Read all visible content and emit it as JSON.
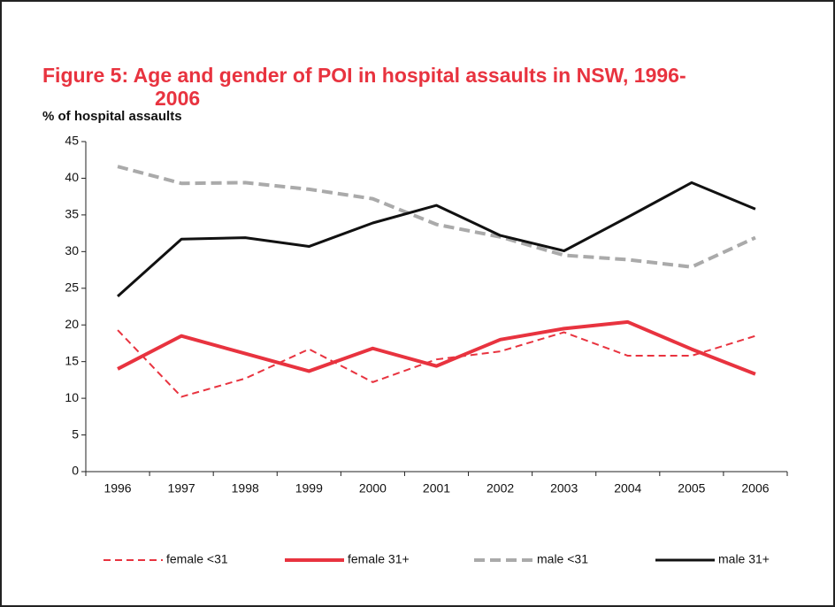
{
  "chart_data": {
    "type": "line",
    "title": "Figure 5: Age and gender of POI in hospital assaults in NSW, 1996-2006",
    "y_label": "% of hospital assaults",
    "categories": [
      "1996",
      "1997",
      "1998",
      "1999",
      "2000",
      "2001",
      "2002",
      "2003",
      "2004",
      "2005",
      "2006"
    ],
    "series": [
      {
        "name": "female <31",
        "color": "#e8333f",
        "style": "dashed",
        "width": 2,
        "values": [
          19.3,
          10.2,
          12.7,
          16.7,
          12.2,
          15.3,
          16.4,
          19.0,
          15.8,
          15.8,
          18.5
        ]
      },
      {
        "name": "female 31+",
        "color": "#e8333f",
        "style": "solid",
        "width": 4,
        "values": [
          14.0,
          18.5,
          16.1,
          13.7,
          16.8,
          14.4,
          18.0,
          19.5,
          20.4,
          16.7,
          13.3
        ]
      },
      {
        "name": "male <31",
        "color": "#aaaaaa",
        "style": "dashed",
        "width": 4,
        "values": [
          41.6,
          39.3,
          39.4,
          38.5,
          37.2,
          33.7,
          32.0,
          29.5,
          28.9,
          27.9,
          31.9
        ]
      },
      {
        "name": "male 31+",
        "color": "#111111",
        "style": "solid",
        "width": 3,
        "values": [
          23.9,
          31.7,
          31.9,
          30.7,
          33.9,
          36.3,
          32.2,
          30.1,
          34.7,
          39.4,
          35.8
        ]
      }
    ],
    "ylim": [
      0,
      45
    ],
    "yticks": [
      0,
      5,
      10,
      15,
      20,
      25,
      30,
      35,
      40,
      45
    ],
    "grid": false,
    "legend": "bottom"
  }
}
